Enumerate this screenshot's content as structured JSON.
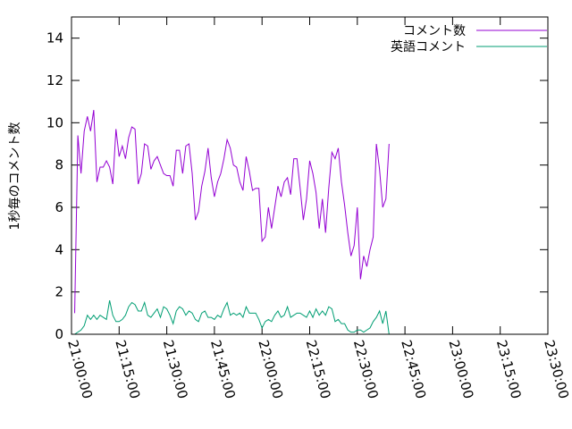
{
  "chart_data": {
    "type": "line",
    "title": "",
    "xlabel": "",
    "ylabel": "1秒毎のコメント数",
    "x_unit": "time (HH:MM:SS), one point per minute starting 21:00:00",
    "xlim": [
      "21:00:00",
      "23:30:00"
    ],
    "ylim": [
      0,
      15
    ],
    "x_ticks": [
      "21:00:00",
      "21:15:00",
      "21:30:00",
      "21:45:00",
      "22:00:00",
      "22:15:00",
      "22:30:00",
      "22:45:00",
      "23:00:00",
      "23:15:00",
      "23:30:00"
    ],
    "y_ticks": [
      "0",
      "2",
      "4",
      "6",
      "8",
      "10",
      "12",
      "14"
    ],
    "legend_position": "top-right",
    "grid": false,
    "colors": {
      "series1": "#9400d3",
      "series2": "#009e73",
      "axis": "#000000"
    },
    "series": [
      {
        "name": "コメント数",
        "start": "21:01:00",
        "step_minutes": 1,
        "values": [
          1.0,
          9.4,
          7.6,
          9.6,
          10.3,
          9.6,
          10.6,
          7.2,
          7.9,
          7.9,
          8.2,
          7.9,
          7.1,
          9.7,
          8.4,
          8.9,
          8.3,
          9.3,
          9.8,
          9.7,
          7.1,
          7.6,
          9.0,
          8.9,
          7.8,
          8.2,
          8.4,
          8.0,
          7.6,
          7.5,
          7.5,
          7.0,
          8.7,
          8.7,
          7.6,
          8.9,
          9.0,
          7.6,
          5.4,
          5.8,
          7.0,
          7.7,
          8.8,
          7.4,
          6.5,
          7.2,
          7.6,
          8.3,
          9.2,
          8.8,
          8.0,
          7.9,
          7.2,
          6.8,
          8.4,
          7.7,
          6.8,
          6.9,
          6.9,
          4.4,
          4.6,
          6.0,
          5.0,
          6.0,
          7.0,
          6.5,
          7.2,
          7.4,
          6.6,
          8.3,
          8.3,
          6.9,
          5.4,
          6.4,
          8.2,
          7.6,
          6.7,
          5.0,
          6.4,
          4.8,
          6.9,
          8.6,
          8.3,
          8.8,
          7.2,
          6.1,
          4.8,
          3.7,
          4.2,
          6.0,
          2.6,
          3.7,
          3.2,
          4.0,
          4.6,
          9.0,
          7.8,
          6.0,
          6.4,
          9.0
        ]
      },
      {
        "name": "英語コメント",
        "start": "21:01:00",
        "step_minutes": 1,
        "values": [
          0.0,
          0.1,
          0.2,
          0.4,
          0.9,
          0.7,
          0.9,
          0.7,
          0.9,
          0.8,
          0.7,
          1.6,
          0.9,
          0.6,
          0.6,
          0.7,
          0.9,
          1.3,
          1.5,
          1.4,
          1.1,
          1.1,
          1.5,
          0.9,
          0.8,
          1.0,
          1.2,
          0.8,
          1.3,
          1.2,
          0.9,
          0.5,
          1.1,
          1.3,
          1.2,
          0.9,
          1.1,
          1.0,
          0.7,
          0.6,
          1.0,
          1.1,
          0.8,
          0.8,
          0.7,
          0.9,
          0.8,
          1.2,
          1.5,
          0.9,
          1.0,
          0.9,
          1.0,
          0.8,
          1.3,
          1.0,
          1.0,
          1.0,
          0.7,
          0.3,
          0.6,
          0.7,
          0.6,
          0.9,
          1.1,
          0.8,
          0.9,
          1.3,
          0.8,
          0.9,
          1.0,
          1.0,
          0.9,
          0.8,
          1.1,
          0.8,
          1.2,
          0.9,
          1.1,
          0.9,
          1.3,
          1.2,
          0.6,
          0.7,
          0.5,
          0.5,
          0.2,
          0.1,
          0.1,
          0.2,
          0.2,
          0.1,
          0.2,
          0.3,
          0.6,
          0.8,
          1.1,
          0.5,
          1.1,
          0.0
        ]
      }
    ]
  }
}
